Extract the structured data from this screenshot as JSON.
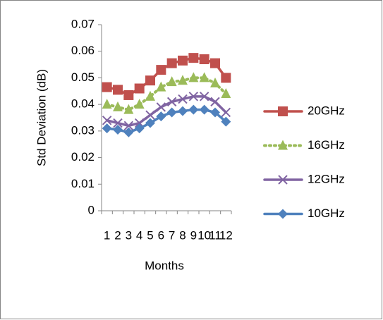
{
  "chart_data": {
    "type": "line",
    "x_label": "Months",
    "y_label": "Std Deviation (dB)",
    "categories": [
      "1",
      "2",
      "3",
      "4",
      "5",
      "6",
      "7",
      "8",
      "9",
      "10",
      "11",
      "12"
    ],
    "ylim": [
      0,
      0.07
    ],
    "yticks": [
      0,
      0.01,
      0.02,
      0.03,
      0.04,
      0.05,
      0.06,
      0.07
    ],
    "grid": false,
    "legend": "right",
    "series": [
      {
        "name": "20GHz",
        "color": "#c0504d",
        "marker": "square",
        "dash": false,
        "values": [
          0.0465,
          0.0455,
          0.0435,
          0.046,
          0.049,
          0.053,
          0.0555,
          0.0565,
          0.0575,
          0.057,
          0.0555,
          0.05
        ]
      },
      {
        "name": "16GHz",
        "color": "#9bbb59",
        "marker": "triangle",
        "dash": true,
        "values": [
          0.04,
          0.039,
          0.038,
          0.04,
          0.043,
          0.0465,
          0.0485,
          0.049,
          0.05,
          0.05,
          0.048,
          0.044
        ]
      },
      {
        "name": "12GHz",
        "color": "#8064a2",
        "marker": "cross",
        "dash": false,
        "values": [
          0.034,
          0.033,
          0.032,
          0.033,
          0.036,
          0.039,
          0.041,
          0.042,
          0.043,
          0.043,
          0.041,
          0.037
        ]
      },
      {
        "name": "10GHz",
        "color": "#4f81bd",
        "marker": "diamond",
        "dash": false,
        "values": [
          0.031,
          0.0305,
          0.0295,
          0.031,
          0.033,
          0.0355,
          0.037,
          0.0375,
          0.038,
          0.038,
          0.037,
          0.0335
        ]
      }
    ]
  }
}
